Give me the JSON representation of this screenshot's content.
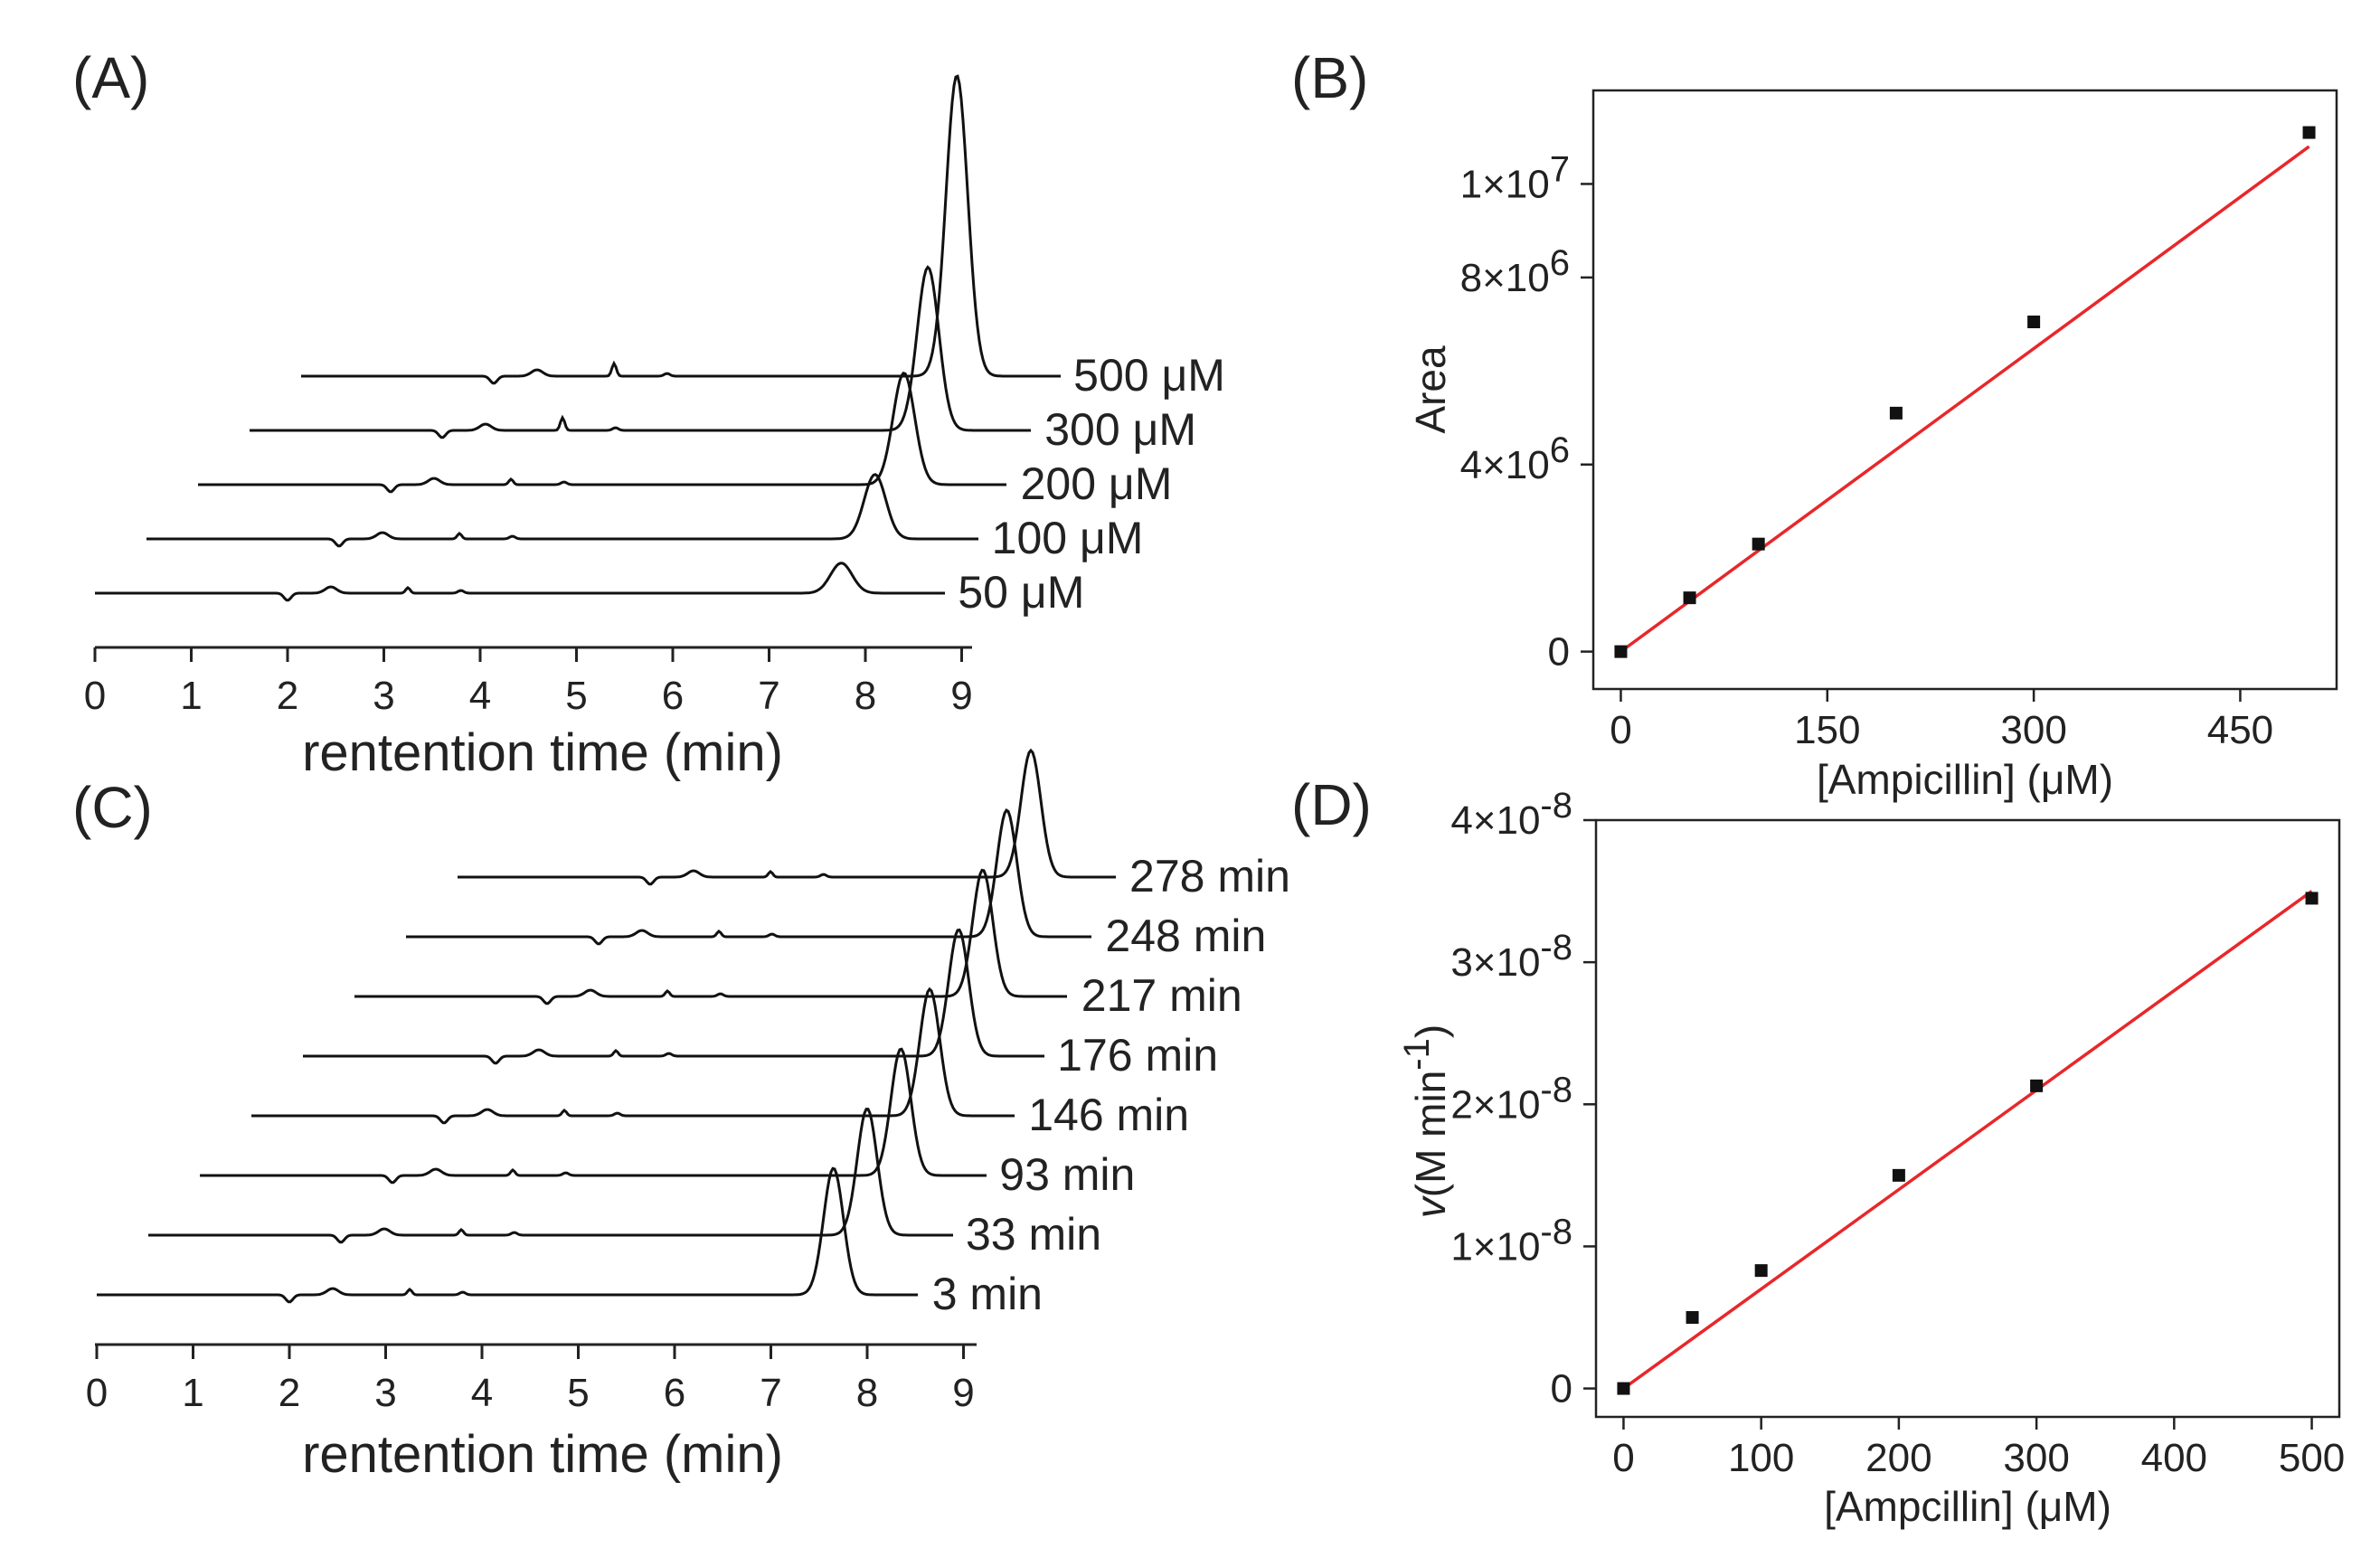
{
  "chart_data": [
    {
      "id": "A",
      "type": "line",
      "panel_label": "(A)",
      "xlabel": "rentention time (min)",
      "xlim": [
        0,
        9.4
      ],
      "xticks": [
        "0",
        "1",
        "2",
        "3",
        "4",
        "5",
        "6",
        "7",
        "8",
        "9"
      ],
      "series": [
        {
          "name": "50 μM",
          "peak_rt": 7.75,
          "peak_height": 0.35
        },
        {
          "name": "100 μM",
          "peak_rt": 8.1,
          "peak_height": 0.75
        },
        {
          "name": "200 μM",
          "peak_rt": 8.4,
          "peak_height": 1.3
        },
        {
          "name": "300 μM",
          "peak_rt": 8.65,
          "peak_height": 1.9
        },
        {
          "name": "500 μM",
          "peak_rt": 8.95,
          "peak_height": 3.5
        }
      ]
    },
    {
      "id": "B",
      "type": "scatter",
      "panel_label": "(B)",
      "xlabel": "[Ampicillin] (μM)",
      "ylabel": "Area",
      "xlim": [
        -20,
        520
      ],
      "ylim": [
        -800000,
        12000000
      ],
      "xticks": [
        "0",
        "150",
        "300",
        "450"
      ],
      "yticks": [
        {
          "base": "0",
          "exp": ""
        },
        {
          "base": "4×10",
          "exp": "6"
        },
        {
          "base": "8×10",
          "exp": "6"
        },
        {
          "base": "1×10",
          "exp": "7"
        }
      ],
      "x": [
        0,
        50,
        100,
        200,
        300,
        500
      ],
      "y": [
        0,
        1150000,
        2300000,
        5100000,
        7050000,
        11100000
      ],
      "fit": {
        "x": [
          0,
          500
        ],
        "y": [
          0,
          10800000
        ],
        "color": "#e8272a"
      }
    },
    {
      "id": "C",
      "type": "line",
      "panel_label": "(C)",
      "xlabel": "rentention time (min)",
      "xlim": [
        0,
        9.4
      ],
      "xticks": [
        "0",
        "1",
        "2",
        "3",
        "4",
        "5",
        "6",
        "7",
        "8",
        "9"
      ],
      "series": [
        {
          "name": "3 min",
          "peak_rt": 7.65,
          "peak_height": 1.0
        },
        {
          "name": "33 min",
          "peak_rt": 8.0,
          "peak_height": 1.0
        },
        {
          "name": "93 min",
          "peak_rt": 8.35,
          "peak_height": 1.0
        },
        {
          "name": "146 min",
          "peak_rt": 8.65,
          "peak_height": 1.0
        },
        {
          "name": "176 min",
          "peak_rt": 8.95,
          "peak_height": 1.0
        },
        {
          "name": "217 min",
          "peak_rt": 9.2,
          "peak_height": 1.0
        },
        {
          "name": "248 min",
          "peak_rt": 9.45,
          "peak_height": 1.0
        },
        {
          "name": "278 min",
          "peak_rt": 9.7,
          "peak_height": 1.0
        }
      ]
    },
    {
      "id": "D",
      "type": "scatter",
      "panel_label": "(D)",
      "xlabel": "[Ampcillin] (μM)",
      "ylabel_italic": "v",
      "ylabel_rest": "(M min",
      "ylabel_sup": "-1",
      "ylabel_close": ")",
      "xlim": [
        -20,
        520
      ],
      "ylim": [
        -2e-09,
        4e-08
      ],
      "xticks": [
        "0",
        "100",
        "200",
        "300",
        "400",
        "500"
      ],
      "yticks": [
        {
          "base": "0",
          "exp": ""
        },
        {
          "base": "1×10",
          "exp": "-8"
        },
        {
          "base": "2×10",
          "exp": "-8"
        },
        {
          "base": "3×10",
          "exp": "-8"
        },
        {
          "base": "4×10",
          "exp": "-8"
        }
      ],
      "x": [
        0,
        50,
        100,
        200,
        300,
        500
      ],
      "y": [
        0.0,
        5e-09,
        8.3e-09,
        1.5e-08,
        2.13e-08,
        3.45e-08
      ],
      "fit": {
        "x": [
          0,
          500
        ],
        "y": [
          0,
          3.5e-08
        ],
        "color": "#e8272a"
      }
    }
  ]
}
